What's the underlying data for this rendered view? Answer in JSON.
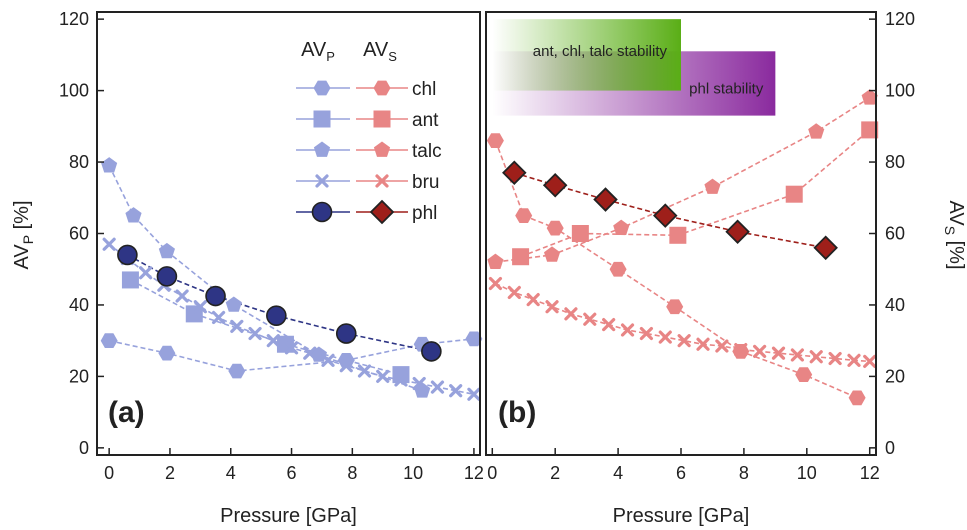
{
  "chart_data": [
    {
      "type": "line",
      "panel_label": "(a)",
      "xlabel": "Pressure [GPa]",
      "ylabel_main": "AV",
      "ylabel_sub": "P",
      "ylabel_tail": " [%]",
      "xlim": [
        -0.4,
        12.2
      ],
      "ylim": [
        -2,
        122
      ],
      "xticks": [
        "0",
        "2",
        "4",
        "6",
        "8",
        "10",
        "12"
      ],
      "yticks": [
        "0",
        "20",
        "40",
        "60",
        "80",
        "100",
        "120"
      ],
      "legend": {
        "head_main": "AV",
        "head_sub": "P",
        "placement": "top-right"
      },
      "colors": {
        "light": "#97A2DC",
        "dark": "#2E3585"
      },
      "series": [
        {
          "name": "chl",
          "marker": "hexagon",
          "tone": "light",
          "x": [
            0,
            1.9,
            4.2,
            7.8,
            10.3,
            12
          ],
          "y": [
            30,
            26.5,
            21.5,
            24.5,
            29,
            30.5
          ]
        },
        {
          "name": "ant",
          "marker": "square",
          "tone": "light",
          "x": [
            0.7,
            2.8,
            5.8,
            9.6
          ],
          "y": [
            47,
            37.5,
            29,
            20.5
          ]
        },
        {
          "name": "talc",
          "marker": "pentagon",
          "tone": "light",
          "x": [
            0,
            0.8,
            1.9,
            4.1,
            6.9,
            10.3
          ],
          "y": [
            79,
            65,
            55,
            40,
            26,
            16
          ]
        },
        {
          "name": "bru",
          "marker": "cross",
          "tone": "light",
          "x": [
            0,
            0.6,
            1.2,
            1.8,
            2.4,
            3,
            3.6,
            4.2,
            4.8,
            5.4,
            6,
            6.6,
            7.2,
            7.8,
            8.4,
            9,
            9.6,
            10.2,
            10.8,
            11.4,
            12
          ],
          "y": [
            57,
            53,
            49,
            45.5,
            42.5,
            39.5,
            36.5,
            34,
            32,
            30,
            28,
            26.5,
            24.5,
            23,
            21.5,
            20,
            19,
            18,
            17,
            16,
            15
          ]
        },
        {
          "name": "phl",
          "marker": "circle",
          "tone": "dark",
          "x": [
            0.6,
            1.9,
            3.5,
            5.5,
            7.8,
            10.6
          ],
          "y": [
            54,
            48,
            42.5,
            37,
            32,
            27
          ]
        }
      ]
    },
    {
      "type": "line",
      "panel_label": "(b)",
      "xlabel": "Pressure [GPa]",
      "ylabel_main": "AV",
      "ylabel_sub": "S",
      "ylabel_tail": " [%]",
      "xlim": [
        -0.2,
        12.2
      ],
      "ylim": [
        -2,
        122
      ],
      "xticks": [
        "0",
        "2",
        "4",
        "6",
        "8",
        "10",
        "12"
      ],
      "yticks": [
        "0",
        "20",
        "40",
        "60",
        "80",
        "100",
        "120"
      ],
      "legend": {
        "head_main": "AV",
        "head_sub": "S",
        "placement": "top-left"
      },
      "colors": {
        "light": "#E88585",
        "dark": "#9E1F1A",
        "outline": "#222222"
      },
      "bands": [
        {
          "label": "ant, chl, talc stability",
          "x_from": 0,
          "x_to": 6,
          "y_from": 100,
          "y_to": 120,
          "color": "#5AAE16"
        },
        {
          "label": "phl stability",
          "x_from": 0,
          "x_to": 9,
          "y_from": 93,
          "y_to": 111,
          "color": "#8A2A9E"
        }
      ],
      "series": [
        {
          "name": "chl",
          "marker": "hexagon",
          "tone": "light",
          "x": [
            0.1,
            1,
            2,
            4,
            5.8,
            7.9,
            9.9,
            11.6
          ],
          "y": [
            86,
            65,
            61.5,
            50,
            39.5,
            27,
            20.5,
            14
          ]
        },
        {
          "name": "ant",
          "marker": "square",
          "tone": "light",
          "x": [
            0.9,
            2.8,
            5.9,
            9.6,
            12
          ],
          "y": [
            53.5,
            60,
            59.5,
            71,
            89
          ]
        },
        {
          "name": "talc",
          "marker": "pentagon",
          "tone": "light",
          "x": [
            0.1,
            1.9,
            4.1,
            7,
            10.3,
            12
          ],
          "y": [
            52,
            54,
            61.5,
            73,
            88.5,
            98
          ]
        },
        {
          "name": "bru",
          "marker": "cross",
          "tone": "light",
          "x": [
            0.1,
            0.7,
            1.3,
            1.9,
            2.5,
            3.1,
            3.7,
            4.3,
            4.9,
            5.5,
            6.1,
            6.7,
            7.3,
            7.9,
            8.5,
            9.1,
            9.7,
            10.3,
            10.9,
            11.5,
            12
          ],
          "y": [
            46,
            43.5,
            41.5,
            39.5,
            37.5,
            36,
            34.5,
            33,
            32,
            31,
            30,
            29,
            28.5,
            27.5,
            27,
            26.5,
            26,
            25.5,
            25,
            24.5,
            24.2
          ]
        },
        {
          "name": "phl",
          "marker": "diamond",
          "tone": "dark",
          "x": [
            0.7,
            2,
            3.6,
            5.5,
            7.8,
            10.6
          ],
          "y": [
            77,
            73.5,
            69.5,
            65,
            60.5,
            56
          ]
        }
      ]
    }
  ]
}
